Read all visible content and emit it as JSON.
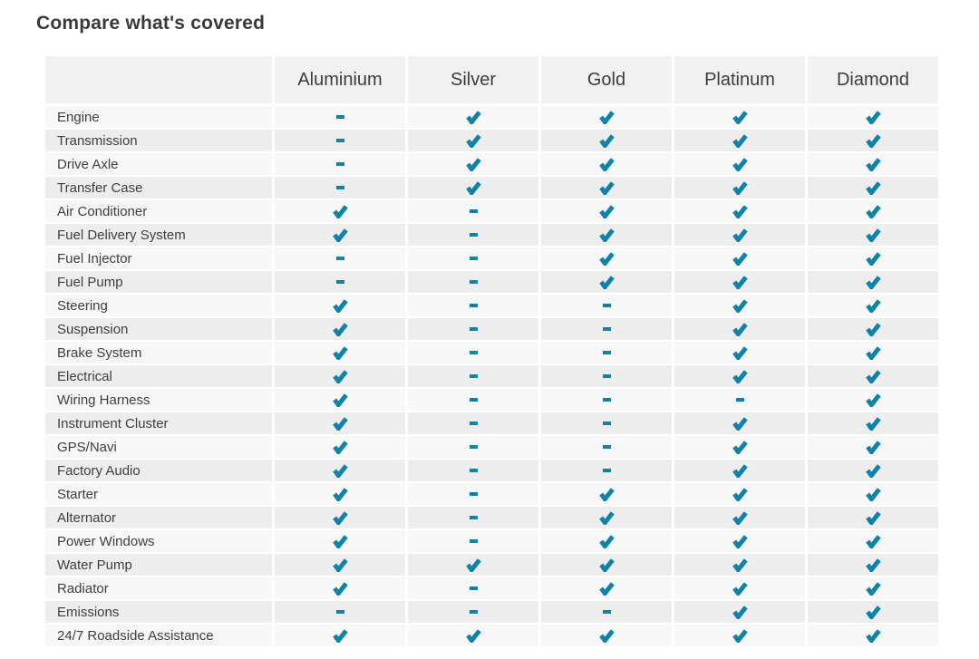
{
  "page": {
    "title": "Compare what's covered"
  },
  "icons": {
    "covered": {
      "name": "check-icon",
      "glyph": "✔"
    },
    "not_covered": {
      "name": "dash-icon",
      "glyph": "-"
    }
  },
  "colors": {
    "accent": "#1082a8",
    "header_bg": "#f1f1f1",
    "row_bg_light": "#f7f7f7",
    "row_bg_dark": "#ededed",
    "text": "#3f3f3f"
  },
  "table": {
    "columns": [
      "Aluminium",
      "Silver",
      "Gold",
      "Platinum",
      "Diamond"
    ],
    "rows": [
      {
        "label": "Engine",
        "coverage": [
          false,
          true,
          true,
          true,
          true
        ]
      },
      {
        "label": "Transmission",
        "coverage": [
          false,
          true,
          true,
          true,
          true
        ]
      },
      {
        "label": "Drive Axle",
        "coverage": [
          false,
          true,
          true,
          true,
          true
        ]
      },
      {
        "label": "Transfer Case",
        "coverage": [
          false,
          true,
          true,
          true,
          true
        ]
      },
      {
        "label": "Air Conditioner",
        "coverage": [
          true,
          false,
          true,
          true,
          true
        ]
      },
      {
        "label": "Fuel Delivery System",
        "coverage": [
          true,
          false,
          true,
          true,
          true
        ]
      },
      {
        "label": "Fuel Injector",
        "coverage": [
          false,
          false,
          true,
          true,
          true
        ]
      },
      {
        "label": "Fuel Pump",
        "coverage": [
          false,
          false,
          true,
          true,
          true
        ]
      },
      {
        "label": "Steering",
        "coverage": [
          true,
          false,
          false,
          true,
          true
        ]
      },
      {
        "label": "Suspension",
        "coverage": [
          true,
          false,
          false,
          true,
          true
        ]
      },
      {
        "label": "Brake System",
        "coverage": [
          true,
          false,
          false,
          true,
          true
        ]
      },
      {
        "label": "Electrical",
        "coverage": [
          true,
          false,
          false,
          true,
          true
        ]
      },
      {
        "label": "Wiring Harness",
        "coverage": [
          true,
          false,
          false,
          false,
          true
        ]
      },
      {
        "label": "Instrument Cluster",
        "coverage": [
          true,
          false,
          false,
          true,
          true
        ]
      },
      {
        "label": "GPS/Navi",
        "coverage": [
          true,
          false,
          false,
          true,
          true
        ]
      },
      {
        "label": "Factory Audio",
        "coverage": [
          true,
          false,
          false,
          true,
          true
        ]
      },
      {
        "label": "Starter",
        "coverage": [
          true,
          false,
          true,
          true,
          true
        ]
      },
      {
        "label": "Alternator",
        "coverage": [
          true,
          false,
          true,
          true,
          true
        ]
      },
      {
        "label": "Power Windows",
        "coverage": [
          true,
          false,
          true,
          true,
          true
        ]
      },
      {
        "label": "Water Pump",
        "coverage": [
          true,
          true,
          true,
          true,
          true
        ]
      },
      {
        "label": "Radiator",
        "coverage": [
          true,
          false,
          true,
          true,
          true
        ]
      },
      {
        "label": "Emissions",
        "coverage": [
          false,
          false,
          false,
          true,
          true
        ]
      },
      {
        "label": "24/7 Roadside Assistance",
        "coverage": [
          true,
          true,
          true,
          true,
          true
        ]
      }
    ]
  }
}
